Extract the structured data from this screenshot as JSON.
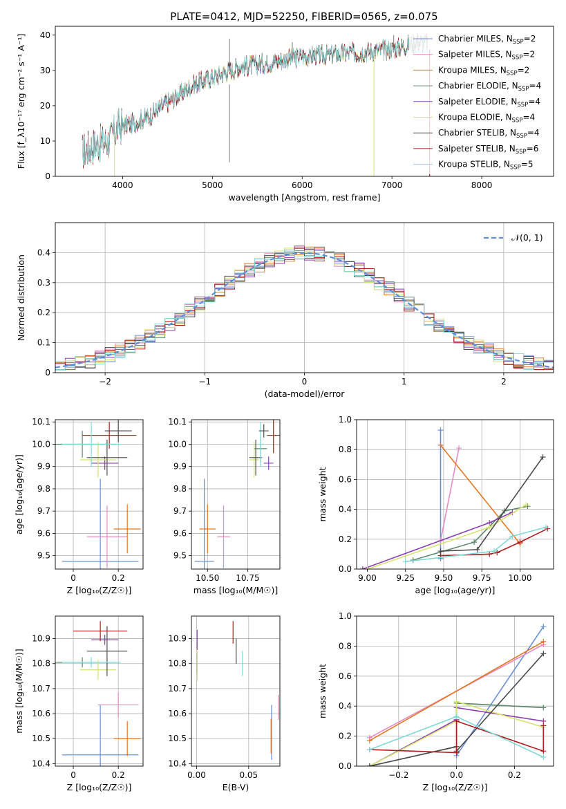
{
  "figure_title": "PLATE=0412, MJD=52250, FIBERID=0565, z=0.075",
  "colors": {
    "Chabrier MILES": "#6a8fd6",
    "Salpeter MILES": "#e58ac3",
    "Kroupa MILES": "#e2771f",
    "Chabrier ELODIE": "#5a8a6a",
    "Salpeter ELODIE": "#8b3fb0",
    "Kroupa ELODIE": "#d7e36e",
    "Chabrier STELIB": "#4a4a4a",
    "Salpeter STELIB": "#b01c1c",
    "Kroupa STELIB": "#7fd8d8"
  },
  "chart_data": [
    {
      "id": "spectrum",
      "type": "line",
      "title": "PLATE=0412, MJD=52250, FIBERID=0565, z=0.075",
      "xlabel": "wavelength [Angstrom, rest frame]",
      "ylabel": "Flux [f_λ10⁻¹⁷ erg cm⁻² s⁻¹ A⁻¹]",
      "xlim": [
        3250,
        8800
      ],
      "ylim": [
        0,
        42.5
      ],
      "xticks": [
        4000,
        5000,
        6000,
        7000,
        8000
      ],
      "yticks": [
        0,
        10,
        20,
        30,
        40
      ],
      "continuum": {
        "x": [
          3550,
          3700,
          3850,
          3950,
          4100,
          4300,
          4500,
          4800,
          5000,
          5300,
          5600,
          6000,
          6300,
          6600,
          7000,
          7300,
          7400
        ],
        "y": [
          7,
          9,
          10,
          14,
          15,
          17,
          21,
          26,
          28,
          31,
          32,
          34,
          34.5,
          35,
          36,
          38,
          38
        ]
      },
      "legend": [
        {
          "label": "Chabrier MILES",
          "nssp": "2"
        },
        {
          "label": "Salpeter MILES",
          "nssp": "2"
        },
        {
          "label": "Kroupa MILES",
          "nssp": "2"
        },
        {
          "label": "Chabrier ELODIE",
          "nssp": "4"
        },
        {
          "label": "Salpeter ELODIE",
          "nssp": "4"
        },
        {
          "label": "Kroupa ELODIE",
          "nssp": "4"
        },
        {
          "label": "Chabrier STELIB",
          "nssp": "4"
        },
        {
          "label": "Salpeter STELIB",
          "nssp": "6"
        },
        {
          "label": "Kroupa STELIB",
          "nssp": "5"
        }
      ],
      "legend_placement": "upper right",
      "grid": false
    },
    {
      "id": "residuals",
      "type": "histogram",
      "xlabel": "(data-model)/error",
      "ylabel": "Normed distribution",
      "xlim": [
        -2.5,
        2.5
      ],
      "ylim": [
        0,
        0.5
      ],
      "xticks": [
        -2,
        -1,
        0,
        1,
        2
      ],
      "xtick_labels": [
        "−2",
        "−1",
        "0",
        "1",
        "2"
      ],
      "yticks": [
        0,
        0.1,
        0.2,
        0.3,
        0.4
      ],
      "bin_width": 0.1,
      "reference_label": "𝒩(0, 1)",
      "legend_placement": "upper right",
      "grid": true
    },
    {
      "id": "age-vs-Z",
      "type": "scatter",
      "xlabel": "Z [log₁₀(Z/Z☉)]",
      "ylabel": "age  [log₁₀(age/yr)]",
      "xlim": [
        -0.08,
        0.31
      ],
      "ylim": [
        9.44,
        10.11
      ],
      "xticks": [
        0.0,
        0.2
      ],
      "yticks": [
        9.5,
        9.6,
        9.7,
        9.8,
        9.9,
        10.0,
        10.1
      ],
      "points": [
        {
          "model": "Chabrier MILES",
          "x": 0.12,
          "xerr": 0.17,
          "y": 9.475,
          "yerr": 0.37
        },
        {
          "model": "Salpeter MILES",
          "x": 0.15,
          "xerr": 0.09,
          "y": 9.585,
          "yerr": 0.14
        },
        {
          "model": "Kroupa MILES",
          "x": 0.24,
          "xerr": 0.06,
          "y": 9.62,
          "yerr": 0.11
        },
        {
          "model": "Chabrier ELODIE",
          "x": 0.04,
          "xerr": 0.15,
          "y": 10.0,
          "yerr": 0.06
        },
        {
          "model": "Salpeter ELODIE",
          "x": 0.14,
          "xerr": 0.06,
          "y": 9.915,
          "yerr": 0.03
        },
        {
          "model": "Kroupa ELODIE",
          "x": 0.11,
          "xerr": 0.08,
          "y": 9.93,
          "yerr": 0.08
        },
        {
          "model": "Chabrier STELIB",
          "x": 0.15,
          "xerr": 0.09,
          "y": 9.94,
          "yerr": 0.08
        },
        {
          "model": "Salpeter STELIB",
          "x": 0.16,
          "xerr": 0.12,
          "y": 10.04,
          "yerr": 0.06
        },
        {
          "model": "Kroupa STELIB",
          "x": 0.08,
          "xerr": 0.13,
          "y": 10.0,
          "yerr": 0.1
        },
        {
          "model": "Chabrier STELIB",
          "x": 0.2,
          "xerr": 0.06,
          "y": 10.06,
          "yerr": 0.05
        }
      ]
    },
    {
      "id": "age-vs-mass",
      "type": "scatter",
      "xlabel": "mass [log₁₀(M/M☉)]",
      "xlim": [
        10.4,
        10.95
      ],
      "ylim": [
        9.44,
        10.11
      ],
      "xticks": [
        10.5,
        10.75
      ],
      "xtick_labels": [
        "10.50",
        "10.75"
      ],
      "yticks": [
        9.5,
        9.6,
        9.7,
        9.8,
        9.9,
        10.0,
        10.1
      ],
      "points": [
        {
          "model": "Chabrier MILES",
          "x": 10.48,
          "xerr": 0.06,
          "y": 9.475,
          "yerr": 0.37
        },
        {
          "model": "Salpeter MILES",
          "x": 10.6,
          "xerr": 0.04,
          "y": 9.585,
          "yerr": 0.14
        },
        {
          "model": "Kroupa MILES",
          "x": 10.5,
          "xerr": 0.05,
          "y": 9.62,
          "yerr": 0.11
        },
        {
          "model": "Chabrier ELODIE",
          "x": 10.83,
          "xerr": 0.04,
          "y": 9.98,
          "yerr": 0.06
        },
        {
          "model": "Salpeter ELODIE",
          "x": 10.88,
          "xerr": 0.03,
          "y": 9.915,
          "yerr": 0.03
        },
        {
          "model": "Kroupa ELODIE",
          "x": 10.79,
          "xerr": 0.03,
          "y": 9.93,
          "yerr": 0.08
        },
        {
          "model": "Chabrier STELIB",
          "x": 10.8,
          "xerr": 0.04,
          "y": 9.94,
          "yerr": 0.08
        },
        {
          "model": "Salpeter STELIB",
          "x": 10.91,
          "xerr": 0.04,
          "y": 10.04,
          "yerr": 0.08
        },
        {
          "model": "Kroupa STELIB",
          "x": 10.83,
          "xerr": 0.02,
          "y": 10.0,
          "yerr": 0.1
        },
        {
          "model": "Chabrier STELIB",
          "x": 10.85,
          "xerr": 0.03,
          "y": 10.06,
          "yerr": 0.03
        }
      ]
    },
    {
      "id": "weight-vs-age",
      "type": "line",
      "xlabel": "age  [log₁₀(age/yr)]",
      "ylabel": "mass weight",
      "xlim": [
        8.93,
        10.22
      ],
      "ylim": [
        0,
        1.0
      ],
      "xticks": [
        9.0,
        9.25,
        9.5,
        9.75,
        10.0
      ],
      "xtick_labels": [
        "9.00",
        "9.25",
        "9.50",
        "9.75",
        "10.00"
      ],
      "yticks": [
        0,
        0.2,
        0.4,
        0.6,
        0.8,
        1.0
      ],
      "series": [
        {
          "model": "Chabrier MILES",
          "x": [
            9.48,
            9.48
          ],
          "y": [
            0.93,
            0.07
          ]
        },
        {
          "model": "Salpeter MILES",
          "x": [
            9.48,
            9.6
          ],
          "y": [
            0.19,
            0.81
          ]
        },
        {
          "model": "Kroupa MILES",
          "x": [
            9.48,
            10.0
          ],
          "y": [
            0.83,
            0.17
          ]
        },
        {
          "model": "Chabrier ELODIE",
          "x": [
            9.3,
            9.7,
            9.9,
            10.05
          ],
          "y": [
            0.06,
            0.18,
            0.39,
            0.42
          ]
        },
        {
          "model": "Salpeter ELODIE",
          "x": [
            8.97,
            9.8,
            9.95
          ],
          "y": [
            0.0,
            0.31,
            0.38
          ]
        },
        {
          "model": "Kroupa ELODIE",
          "x": [
            9.0,
            9.8,
            10.04
          ],
          "y": [
            0.0,
            0.28,
            0.43
          ]
        },
        {
          "model": "Chabrier STELIB",
          "x": [
            9.48,
            9.72,
            10.15
          ],
          "y": [
            0.12,
            0.13,
            0.75
          ]
        },
        {
          "model": "Salpeter STELIB",
          "x": [
            9.48,
            9.8,
            9.85,
            10.0,
            10.18
          ],
          "y": [
            0.09,
            0.1,
            0.11,
            0.18,
            0.27
          ]
        },
        {
          "model": "Kroupa STELIB",
          "x": [
            9.25,
            9.83,
            9.95,
            10.17
          ],
          "y": [
            0.05,
            0.12,
            0.22,
            0.28
          ]
        }
      ]
    },
    {
      "id": "mass-vs-Z",
      "type": "scatter",
      "xlabel": "Z [log₁₀(Z/Z☉)]",
      "ylabel": "mass [log₁₀(M/M☉)]",
      "xlim": [
        -0.08,
        0.31
      ],
      "ylim": [
        10.39,
        10.99
      ],
      "xticks": [
        0.0,
        0.2
      ],
      "yticks": [
        10.4,
        10.5,
        10.6,
        10.7,
        10.8,
        10.9
      ],
      "points": [
        {
          "model": "Chabrier MILES",
          "x": 0.12,
          "xerr": 0.17,
          "y": 10.435,
          "yerr": 0.2
        },
        {
          "model": "Salpeter MILES",
          "x": 0.2,
          "xerr": 0.09,
          "y": 10.635,
          "yerr": 0.05
        },
        {
          "model": "Kroupa MILES",
          "x": 0.24,
          "xerr": 0.06,
          "y": 10.5,
          "yerr": 0.07
        },
        {
          "model": "Chabrier ELODIE",
          "x": 0.04,
          "xerr": 0.15,
          "y": 10.805,
          "yerr": 0.02
        },
        {
          "model": "Salpeter ELODIE",
          "x": 0.14,
          "xerr": 0.06,
          "y": 10.895,
          "yerr": 0.02
        },
        {
          "model": "Kroupa ELODIE",
          "x": 0.11,
          "xerr": 0.08,
          "y": 10.775,
          "yerr": 0.04
        },
        {
          "model": "Chabrier STELIB",
          "x": 0.15,
          "xerr": 0.09,
          "y": 10.85,
          "yerr": 0.1
        },
        {
          "model": "Salpeter STELIB",
          "x": 0.12,
          "xerr": 0.12,
          "y": 10.93,
          "yerr": 0.04
        },
        {
          "model": "Kroupa STELIB",
          "x": 0.08,
          "xerr": 0.13,
          "y": 10.805,
          "yerr": 0.02
        }
      ]
    },
    {
      "id": "mass-vs-ebv",
      "type": "scatter",
      "xlabel": "E(B-V)",
      "xlim": [
        -0.005,
        0.08
      ],
      "ylim": [
        10.39,
        10.99
      ],
      "xticks": [
        0.0,
        0.05
      ],
      "xtick_labels": [
        "0.00",
        "0.05"
      ],
      "yticks": [
        10.4,
        10.5,
        10.6,
        10.7,
        10.8,
        10.9
      ],
      "points": [
        {
          "model": "Chabrier MILES",
          "x": 0.072,
          "y": 10.525,
          "yerr": 0.11
        },
        {
          "model": "Salpeter MILES",
          "x": 0.0785,
          "y": 10.625,
          "yerr": 0.05
        },
        {
          "model": "Kroupa MILES",
          "x": 0.0715,
          "y": 10.51,
          "yerr": 0.07
        },
        {
          "model": "Chabrier ELODIE",
          "x": 0.0005,
          "y": 10.8,
          "yerr": 0.04
        },
        {
          "model": "Salpeter ELODIE",
          "x": 0.0005,
          "y": 10.895,
          "yerr": 0.04
        },
        {
          "model": "Kroupa ELODIE",
          "x": 0.0005,
          "y": 10.79,
          "yerr": 0.06
        },
        {
          "model": "Chabrier STELIB",
          "x": 0.038,
          "y": 10.85,
          "yerr": 0.05
        },
        {
          "model": "Salpeter STELIB",
          "x": 0.035,
          "y": 10.925,
          "yerr": 0.045
        },
        {
          "model": "Kroupa STELIB",
          "x": 0.044,
          "y": 10.8,
          "yerr": 0.05
        }
      ]
    },
    {
      "id": "weight-vs-Z",
      "type": "line",
      "xlabel": "Z [log₁₀(Z/Z☉)]",
      "ylabel": "mass weight",
      "xlim": [
        -0.345,
        0.335
      ],
      "ylim": [
        0,
        1.0
      ],
      "xticks": [
        -0.2,
        0.0,
        0.2
      ],
      "xtick_labels": [
        "−0.2",
        "0.0",
        "0.2"
      ],
      "yticks": [
        0,
        0.2,
        0.4,
        0.6,
        0.8,
        1.0
      ],
      "series": [
        {
          "model": "Chabrier MILES",
          "x": [
            0.0,
            0.3
          ],
          "y": [
            0.07,
            0.93
          ]
        },
        {
          "model": "Salpeter MILES",
          "x": [
            -0.3,
            0.3
          ],
          "y": [
            0.19,
            0.81
          ]
        },
        {
          "model": "Kroupa MILES",
          "x": [
            -0.3,
            0.3
          ],
          "y": [
            0.17,
            0.83
          ]
        },
        {
          "model": "Chabrier ELODIE",
          "x": [
            -0.3,
            0.0,
            0.0,
            0.3
          ],
          "y": [
            0.0,
            0.13,
            0.42,
            0.39
          ]
        },
        {
          "model": "Salpeter ELODIE",
          "x": [
            -0.3,
            0.0,
            0.0,
            0.3
          ],
          "y": [
            0.0,
            0.31,
            0.39,
            0.3
          ]
        },
        {
          "model": "Kroupa ELODIE",
          "x": [
            -0.3,
            0.0,
            0.0,
            0.3
          ],
          "y": [
            0.0,
            0.3,
            0.43,
            0.26
          ]
        },
        {
          "model": "Chabrier STELIB",
          "x": [
            -0.3,
            0.0,
            0.0,
            0.3
          ],
          "y": [
            0.0,
            0.13,
            0.1,
            0.75
          ]
        },
        {
          "model": "Salpeter STELIB",
          "x": [
            -0.3,
            0.0,
            0.0,
            0.3,
            0.3
          ],
          "y": [
            0.11,
            0.09,
            0.3,
            0.1,
            0.27
          ]
        },
        {
          "model": "Kroupa STELIB",
          "x": [
            -0.3,
            0.0,
            0.3
          ],
          "y": [
            0.11,
            0.33,
            0.06
          ]
        }
      ]
    }
  ]
}
